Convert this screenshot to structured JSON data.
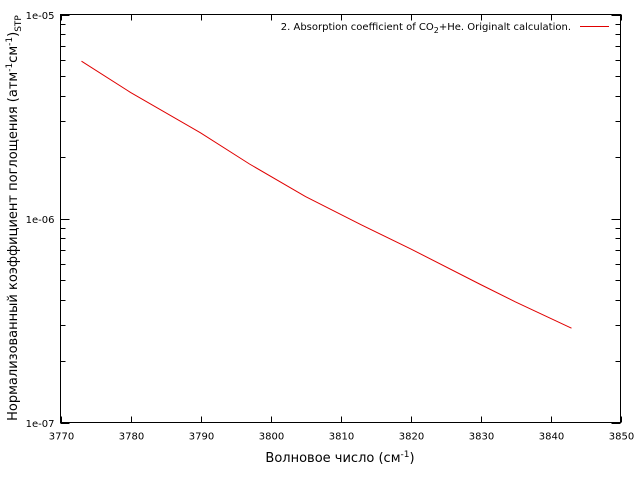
{
  "chart_data": {
    "type": "line",
    "title": "",
    "xlabel": {
      "text": "Волновое число (см",
      "sup": "-1",
      "tail": ")"
    },
    "ylabel": {
      "p1": "Нормализованный коэффициент поглощения (атм",
      "sup1": "-1",
      "p2": "см",
      "sup2": "-1",
      "p3": ")",
      "sub": "STP"
    },
    "xlim": [
      3770,
      3850
    ],
    "ylim": [
      1e-07,
      1e-05
    ],
    "yscale": "log",
    "grid": false,
    "legend_position": "top-right",
    "x_ticks": [
      {
        "value": 3770,
        "label": "3770"
      },
      {
        "value": 3780,
        "label": "3780"
      },
      {
        "value": 3790,
        "label": "3790"
      },
      {
        "value": 3800,
        "label": "3800"
      },
      {
        "value": 3810,
        "label": "3810"
      },
      {
        "value": 3820,
        "label": "3820"
      },
      {
        "value": 3830,
        "label": "3830"
      },
      {
        "value": 3840,
        "label": "3840"
      },
      {
        "value": 3850,
        "label": "3850"
      }
    ],
    "y_major_ticks": [
      {
        "value": 1e-07,
        "label": "1e-07"
      },
      {
        "value": 1e-06,
        "label": "1e-06"
      },
      {
        "value": 1e-05,
        "label": "1e-05"
      }
    ],
    "series": [
      {
        "name": {
          "p1": "2. Absorption coefficient of CO",
          "sub": "2",
          "p2": "+He. Originalt calculation."
        },
        "color": "#e00000",
        "x": [
          3773,
          3780,
          3790,
          3797,
          3805,
          3813,
          3820,
          3830,
          3835,
          3843
        ],
        "y": [
          5.9e-06,
          4.15e-06,
          2.63e-06,
          1.85e-06,
          1.28e-06,
          9.3e-07,
          7.1e-07,
          4.75e-07,
          3.9e-07,
          2.9e-07
        ]
      }
    ]
  }
}
